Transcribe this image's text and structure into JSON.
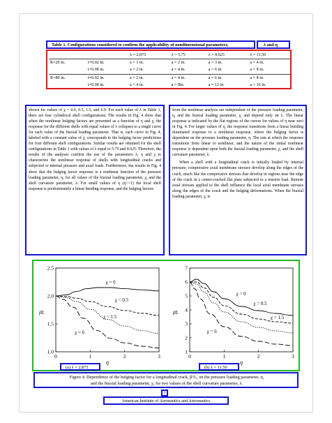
{
  "table": {
    "caption": "Table 1.  Configurations considered to confirm the applicability of nondimensional parameters,",
    "caption_params": "λ and η",
    "headers": [
      "",
      "",
      "λ = 2.875",
      "λ = 5.75",
      "λ = 8.625",
      "λ = 11.50"
    ],
    "rows": [
      [
        "R=20 in.",
        "t=0.02 in.",
        "a = 1 in.",
        "a = 2 in.",
        "a = 3 in.",
        "a = 4 in."
      ],
      [
        "",
        "t=0.08 in.",
        "a = 2 in.",
        "a = 4 in.",
        "a = 6 in.",
        "a = 8 in."
      ],
      [
        "R=80 in.",
        "t=0.02 in.",
        "a = 2 in.",
        "a = 4 in.",
        "a = 6 in.",
        "a = 8 in."
      ],
      [
        "",
        "t=0.08 in.",
        "a = 4 in.",
        "a = 8in.",
        "a = 12 in.",
        "a = 16 in."
      ]
    ]
  },
  "body": {
    "left_column": "shown for values of χ = 0.0, 0.5, 1.5, and 6.0. For each value of λ in Table 1, there are four cylindrical shell configurations. The results in Fig. 4 show that when the nonlinear bulging factors are presented as a function of η and χ, the response for the different shells with equal values of λ collapses to a single curve for each value of the biaxial loading parameter. That is, each curve in Fig. 4, labeled with a constant value of χ, corresponds to the bulging factor predictions for four different shell configurations. Similar results are obtained for the shell configurations in Table 1 with values of λ equal to 5.75 and 8.625. Therefore, the results of the analyses confirm the use of the parameters λ, η and χ to characterize the nonlinear response of shells with longitudinal cracks and subjected to internal pressure and axial loads. Furthermore, the results in Fig. 4 show that the bulging factor response is a nonlinear function of the pressure loading parameter, η, for all values of the biaxial loading parameter, χ, and the shell curvature parameter, λ. For small values of η (η<<1) the local shell response is predominantly a linear bending response, and the bulging factors",
    "right_column_p1": "from the nonlinear analysis are independent of the pressure loading parameter, η, and the biaxial loading parameter, χ, and depend only on λ. The linear response is indicated by the flat regions of the curves for values of η near zero in Fig. 4. For larger values of η, the response transitions from a linear bending dominated response to a nonlinear response, where the bulging factor is dependent on the pressure loading parameter, η. The rate at which the response transitions from linear to nonlinear, and the nature of the initial nonlinear response is dependent upon both the biaxial loading parameter, χ, and the shell curvature parameter, λ.",
    "right_column_p2": "When a shell with a longitudinal crack is initially loaded by internal pressure, compressive axial membrane stresses develop along the edges of the crack, much like the compressive stresses that develop in regions near the edge of the crack in a center-cracked flat plate subjected to a tension load. Remote axial stresses applied to the shell influence the local axial membrane stresses along the edges of the crack and the bulging deformations. When the biaxial loading parameter, χ, is"
  },
  "figure": {
    "caption_line1": "Figure 4.  Dependence of the bulging factor for a longitudinal crack, β^L, on the pressure loading parameter, η,",
    "caption_line2": "and the biaxial loading parameter, χ, for two values of the shell curvature parameter, λ.",
    "left_panel_label": "(a) λ = 2.875",
    "right_panel_label": "(b) λ = 11.50"
  },
  "chart_data": [
    {
      "type": "line",
      "title": "(a) λ = 2.875",
      "xlabel": "η",
      "ylabel": "β^L",
      "xlim": [
        0,
        3
      ],
      "ylim": [
        1.0,
        2.5
      ],
      "xticks": [
        0,
        1,
        2,
        3
      ],
      "yticks": [
        1.0,
        1.5,
        2.0,
        2.5
      ],
      "series": [
        {
          "name": "χ = 0",
          "dash": "solid",
          "x": [
            0,
            0.3,
            0.6,
            0.9,
            1.2,
            1.6,
            2.0,
            2.5,
            3.0
          ],
          "y": [
            2.0,
            2.02,
            2.08,
            2.13,
            2.15,
            2.15,
            2.13,
            2.11,
            2.09
          ]
        },
        {
          "name": "χ = 0.5",
          "dash": "dashed",
          "x": [
            0,
            0.3,
            0.6,
            1.0,
            1.5,
            2.0,
            2.5,
            3.0
          ],
          "y": [
            2.0,
            1.99,
            1.96,
            1.9,
            1.81,
            1.74,
            1.69,
            1.65
          ]
        },
        {
          "name": "χ = 1.5",
          "dash": "dotted",
          "x": [
            0,
            0.3,
            0.6,
            1.0,
            1.5,
            2.0,
            2.5,
            3.0
          ],
          "y": [
            2.0,
            1.97,
            1.9,
            1.76,
            1.58,
            1.46,
            1.38,
            1.33
          ]
        },
        {
          "name": "χ = 6",
          "dash": "longdash",
          "x": [
            0,
            0.2,
            0.5,
            0.8,
            1.2,
            1.6,
            2.0,
            2.5,
            3.0
          ],
          "y": [
            2.0,
            1.94,
            1.8,
            1.6,
            1.38,
            1.24,
            1.16,
            1.1,
            1.07
          ]
        }
      ],
      "annotations": [
        "χ = 0",
        "χ = 0.5",
        "χ = 1.5",
        "χ = 6"
      ]
    },
    {
      "type": "line",
      "title": "(b) λ = 11.50",
      "xlabel": "η",
      "ylabel": "β^L",
      "xlim": [
        0,
        3
      ],
      "ylim": [
        1,
        7
      ],
      "xticks": [
        0,
        1,
        2,
        3
      ],
      "yticks": [
        1,
        2,
        3,
        4,
        5,
        6,
        7
      ],
      "series": [
        {
          "name": "χ = 0",
          "dash": "solid",
          "x": [
            0,
            0.2,
            0.4,
            0.7,
            1.0,
            1.5,
            2.0,
            2.5,
            3.0
          ],
          "y": [
            6.0,
            6.2,
            5.9,
            5.3,
            4.8,
            4.25,
            3.95,
            3.75,
            3.6
          ]
        },
        {
          "name": "χ = 0.5",
          "dash": "dashed",
          "x": [
            0,
            0.2,
            0.4,
            0.7,
            1.0,
            1.5,
            2.0,
            2.5,
            3.0
          ],
          "y": [
            6.0,
            6.0,
            5.6,
            4.9,
            4.3,
            3.7,
            3.35,
            3.15,
            3.05
          ]
        },
        {
          "name": "χ = 1.5",
          "dash": "dotted",
          "x": [
            0,
            0.2,
            0.4,
            0.7,
            1.0,
            1.5,
            2.0,
            2.5,
            3.0
          ],
          "y": [
            6.0,
            5.85,
            5.3,
            4.5,
            3.85,
            3.15,
            2.75,
            2.5,
            2.35
          ]
        },
        {
          "name": "χ = 6",
          "dash": "longdash",
          "x": [
            0,
            0.15,
            0.3,
            0.6,
            1.0,
            1.5,
            2.0,
            2.5,
            3.0
          ],
          "y": [
            6.0,
            5.5,
            4.8,
            3.7,
            2.8,
            2.1,
            1.75,
            1.55,
            1.45
          ]
        }
      ],
      "annotations": [
        "χ = 0",
        "χ = 0.5",
        "χ = 1.5",
        "χ = 6"
      ]
    }
  ],
  "footer": {
    "page_number": "7",
    "organization": "American Institute of Aeronautics and Astronautics"
  },
  "colors": {
    "annotation_blue": "#1515d0",
    "annotation_red": "#e01818"
  }
}
